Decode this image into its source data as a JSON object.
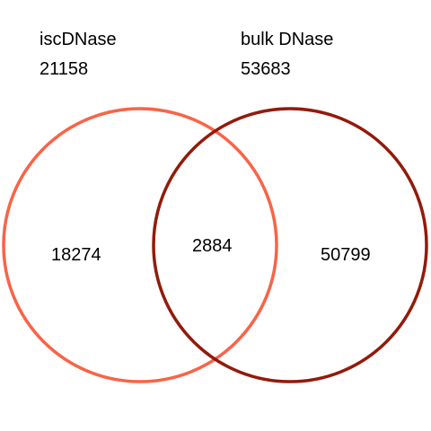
{
  "set_a": {
    "name": "iscDNase",
    "total": "21158",
    "only": "18274",
    "color": "#FA6347"
  },
  "set_b": {
    "name": "bulk DNase",
    "total": "53683",
    "only": "50799",
    "color": "#931A0B"
  },
  "overlap": "2884"
}
